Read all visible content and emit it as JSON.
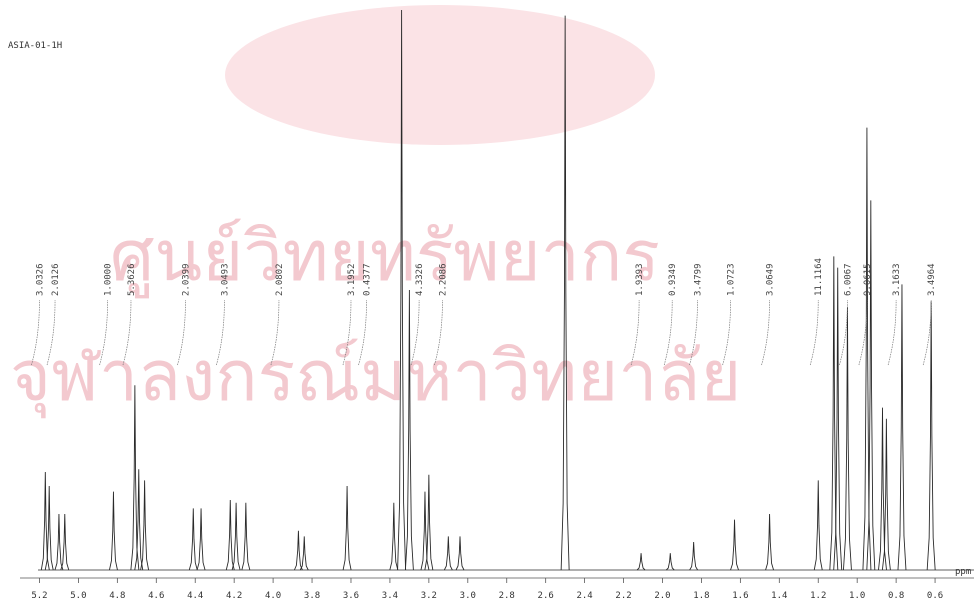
{
  "chart_data": {
    "type": "spectrum",
    "title": "ASIA-01-1H",
    "x_label": "ppm",
    "watermark": [
      "ศูนย์วิทยทรัพยากร",
      "จุฬาลงกรณ์มหาวิทยาลัย"
    ],
    "xlim": [
      5.3,
      0.4
    ],
    "ylim": [
      0,
      100
    ],
    "xticks": [
      5.2,
      {
        "value": 5,
        "label": "5.0"
      },
      4.8,
      4.6,
      4.4,
      4.2,
      {
        "value": 4,
        "label": "4.0"
      },
      3.8,
      3.6,
      3.4,
      3.2,
      {
        "value": 3,
        "label": "3.0"
      },
      2.8,
      2.6,
      2.4,
      2.2,
      {
        "value": 2,
        "label": "2.0"
      },
      1.8,
      1.6,
      1.4,
      1.2,
      {
        "value": 1,
        "label": "1.0"
      },
      0.8,
      0.6
    ],
    "color": "#2a2a2a",
    "x": [
      5.17,
      5.15,
      5.1,
      5.07,
      4.82,
      4.71,
      4.69,
      4.66,
      4.41,
      4.37,
      4.22,
      4.19,
      4.14,
      3.87,
      3.84,
      3.62,
      3.38,
      3.34,
      3.3,
      3.22,
      3.2,
      3.1,
      3.04,
      2.5,
      2.11,
      1.96,
      1.84,
      1.63,
      1.45,
      1.2,
      1.12,
      1.1,
      1.05,
      0.95,
      0.93,
      0.87,
      0.85,
      0.77,
      0.62
    ],
    "values": [
      17.5,
      15,
      10,
      10,
      14,
      33,
      18,
      16,
      11,
      11,
      12.5,
      12,
      12,
      7,
      6,
      15,
      12,
      100,
      50,
      14,
      17,
      6,
      6,
      99,
      3,
      3,
      5,
      9,
      10,
      16,
      56,
      54,
      47,
      79,
      66,
      29,
      27,
      51,
      48
    ],
    "annotations": [
      {
        "x": 5.2,
        "text": "3.0326"
      },
      {
        "x": 5.12,
        "text": "2.0126"
      },
      {
        "x": 4.85,
        "text": "1.0000"
      },
      {
        "x": 4.73,
        "text": "5.3626"
      },
      {
        "x": 4.45,
        "text": "2.0399"
      },
      {
        "x": 4.25,
        "text": "3.0493"
      },
      {
        "x": 3.97,
        "text": "2.0802"
      },
      {
        "x": 3.6,
        "text": "3.1952"
      },
      {
        "x": 3.52,
        "text": "0.4377"
      },
      {
        "x": 3.25,
        "text": "4.3326"
      },
      {
        "x": 3.13,
        "text": "2.2086"
      },
      {
        "x": 2.12,
        "text": "1.9393"
      },
      {
        "x": 1.95,
        "text": "0.9349"
      },
      {
        "x": 1.82,
        "text": "3.4799"
      },
      {
        "x": 1.65,
        "text": "1.0723"
      },
      {
        "x": 1.45,
        "text": "3.0649"
      },
      {
        "x": 1.2,
        "text": "11.1164"
      },
      {
        "x": 1.05,
        "text": "6.0067"
      },
      {
        "x": 0.95,
        "text": "9.0615"
      },
      {
        "x": 0.8,
        "text": "3.1633"
      },
      {
        "x": 0.62,
        "text": "3.4964"
      }
    ]
  }
}
